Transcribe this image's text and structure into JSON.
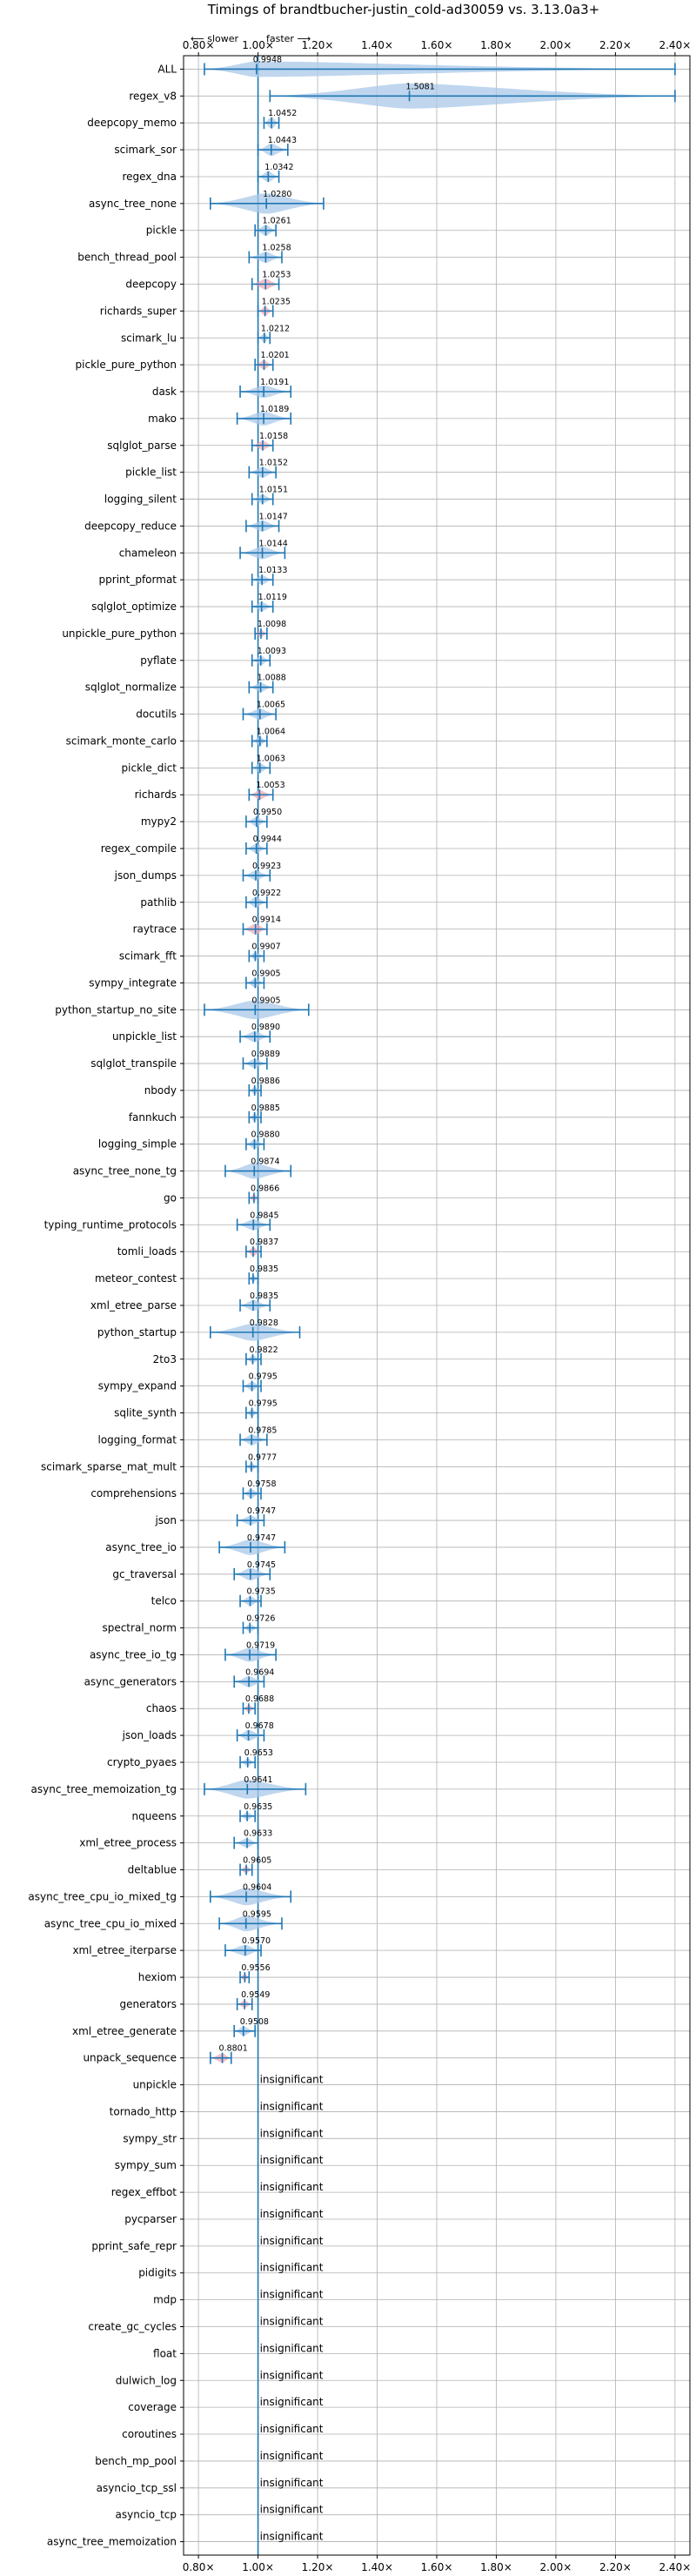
{
  "chart_data": {
    "type": "violin",
    "title": "Timings of brandtbucher-justin_cold-ad30059 vs. 3.13.0a3+",
    "slower_label": "⟵ slower",
    "faster_label": "faster ⟶",
    "xlim": [
      0.75,
      2.45
    ],
    "x_ticks": [
      "0.80×",
      "1.00×",
      "1.20×",
      "1.40×",
      "1.60×",
      "1.80×",
      "2.00×",
      "2.20×",
      "2.40×"
    ],
    "x_tick_values": [
      0.8,
      1.0,
      1.2,
      1.4,
      1.6,
      1.8,
      2.0,
      2.2,
      2.4
    ],
    "grid": true,
    "colors": {
      "violin": "#a9c8e8",
      "violin_significant": "#f4a9b4",
      "line": "#1f77b4",
      "grid": "#b0b0b0"
    },
    "insignificant_label": "insignificant",
    "benchmarks": [
      {
        "name": "ALL",
        "value": 0.9948,
        "label": "0.9948",
        "min": 0.82,
        "max": 2.4,
        "width": 1.0,
        "color": "blue"
      },
      {
        "name": "regex_v8",
        "value": 1.5081,
        "label": "1.5081",
        "min": 1.04,
        "max": 2.4,
        "width": 1.6,
        "color": "blue"
      },
      {
        "name": "deepcopy_memo",
        "value": 1.0452,
        "label": "1.0452",
        "min": 1.02,
        "max": 1.07,
        "width": 0.8,
        "color": "blue"
      },
      {
        "name": "scimark_sor",
        "value": 1.0443,
        "label": "1.0443",
        "min": 1.0,
        "max": 1.1,
        "width": 0.8,
        "color": "blue"
      },
      {
        "name": "regex_dna",
        "value": 1.0342,
        "label": "1.0342",
        "min": 1.0,
        "max": 1.07,
        "width": 0.7,
        "color": "blue"
      },
      {
        "name": "async_tree_none",
        "value": 1.028,
        "label": "1.0280",
        "min": 0.84,
        "max": 1.22,
        "width": 1.3,
        "color": "blue"
      },
      {
        "name": "pickle",
        "value": 1.0261,
        "label": "1.0261",
        "min": 0.99,
        "max": 1.06,
        "width": 0.7,
        "color": "blue"
      },
      {
        "name": "bench_thread_pool",
        "value": 1.0258,
        "label": "1.0258",
        "min": 0.97,
        "max": 1.08,
        "width": 0.7,
        "color": "blue"
      },
      {
        "name": "deepcopy",
        "value": 1.0253,
        "label": "1.0253",
        "min": 0.98,
        "max": 1.07,
        "width": 0.7,
        "color": "pink"
      },
      {
        "name": "richards_super",
        "value": 1.0235,
        "label": "1.0235",
        "min": 1.0,
        "max": 1.05,
        "width": 0.6,
        "color": "pink"
      },
      {
        "name": "scimark_lu",
        "value": 1.0212,
        "label": "1.0212",
        "min": 1.0,
        "max": 1.04,
        "width": 0.6,
        "color": "blue"
      },
      {
        "name": "pickle_pure_python",
        "value": 1.0201,
        "label": "1.0201",
        "min": 0.99,
        "max": 1.05,
        "width": 0.6,
        "color": "pink"
      },
      {
        "name": "dask",
        "value": 1.0191,
        "label": "1.0191",
        "min": 0.94,
        "max": 1.11,
        "width": 0.8,
        "color": "blue"
      },
      {
        "name": "mako",
        "value": 1.0189,
        "label": "1.0189",
        "min": 0.93,
        "max": 1.11,
        "width": 0.9,
        "color": "blue"
      },
      {
        "name": "sqlglot_parse",
        "value": 1.0158,
        "label": "1.0158",
        "min": 0.98,
        "max": 1.05,
        "width": 0.6,
        "color": "pink"
      },
      {
        "name": "pickle_list",
        "value": 1.0152,
        "label": "1.0152",
        "min": 0.97,
        "max": 1.06,
        "width": 0.7,
        "color": "blue"
      },
      {
        "name": "logging_silent",
        "value": 1.0151,
        "label": "1.0151",
        "min": 0.98,
        "max": 1.05,
        "width": 0.6,
        "color": "blue"
      },
      {
        "name": "deepcopy_reduce",
        "value": 1.0147,
        "label": "1.0147",
        "min": 0.96,
        "max": 1.07,
        "width": 0.7,
        "color": "blue"
      },
      {
        "name": "chameleon",
        "value": 1.0144,
        "label": "1.0144",
        "min": 0.94,
        "max": 1.09,
        "width": 0.8,
        "color": "blue"
      },
      {
        "name": "pprint_pformat",
        "value": 1.0133,
        "label": "1.0133",
        "min": 0.98,
        "max": 1.05,
        "width": 0.6,
        "color": "blue"
      },
      {
        "name": "sqlglot_optimize",
        "value": 1.0119,
        "label": "1.0119",
        "min": 0.98,
        "max": 1.05,
        "width": 0.6,
        "color": "blue"
      },
      {
        "name": "unpickle_pure_python",
        "value": 1.0098,
        "label": "1.0098",
        "min": 0.99,
        "max": 1.03,
        "width": 0.5,
        "color": "pink"
      },
      {
        "name": "pyflate",
        "value": 1.0093,
        "label": "1.0093",
        "min": 0.98,
        "max": 1.04,
        "width": 0.6,
        "color": "blue"
      },
      {
        "name": "sqlglot_normalize",
        "value": 1.0088,
        "label": "1.0088",
        "min": 0.97,
        "max": 1.05,
        "width": 0.6,
        "color": "blue"
      },
      {
        "name": "docutils",
        "value": 1.0065,
        "label": "1.0065",
        "min": 0.95,
        "max": 1.06,
        "width": 0.7,
        "color": "blue"
      },
      {
        "name": "scimark_monte_carlo",
        "value": 1.0064,
        "label": "1.0064",
        "min": 0.98,
        "max": 1.03,
        "width": 0.6,
        "color": "blue"
      },
      {
        "name": "pickle_dict",
        "value": 1.0063,
        "label": "1.0063",
        "min": 0.98,
        "max": 1.04,
        "width": 0.6,
        "color": "blue"
      },
      {
        "name": "richards",
        "value": 1.0053,
        "label": "1.0053",
        "min": 0.97,
        "max": 1.05,
        "width": 0.6,
        "color": "pink"
      },
      {
        "name": "mypy2",
        "value": 0.995,
        "label": "0.9950",
        "min": 0.96,
        "max": 1.03,
        "width": 0.6,
        "color": "blue"
      },
      {
        "name": "regex_compile",
        "value": 0.9944,
        "label": "0.9944",
        "min": 0.96,
        "max": 1.03,
        "width": 0.6,
        "color": "blue"
      },
      {
        "name": "json_dumps",
        "value": 0.9923,
        "label": "0.9923",
        "min": 0.95,
        "max": 1.04,
        "width": 0.6,
        "color": "blue"
      },
      {
        "name": "pathlib",
        "value": 0.9922,
        "label": "0.9922",
        "min": 0.96,
        "max": 1.03,
        "width": 0.7,
        "color": "blue"
      },
      {
        "name": "raytrace",
        "value": 0.9914,
        "label": "0.9914",
        "min": 0.95,
        "max": 1.03,
        "width": 0.7,
        "color": "pink"
      },
      {
        "name": "scimark_fft",
        "value": 0.9907,
        "label": "0.9907",
        "min": 0.97,
        "max": 1.02,
        "width": 0.5,
        "color": "blue"
      },
      {
        "name": "sympy_integrate",
        "value": 0.9905,
        "label": "0.9905",
        "min": 0.96,
        "max": 1.02,
        "width": 0.6,
        "color": "blue"
      },
      {
        "name": "python_startup_no_site",
        "value": 0.9905,
        "label": "0.9905",
        "min": 0.82,
        "max": 1.17,
        "width": 1.2,
        "color": "blue"
      },
      {
        "name": "unpickle_list",
        "value": 0.989,
        "label": "0.9890",
        "min": 0.94,
        "max": 1.04,
        "width": 0.7,
        "color": "blue"
      },
      {
        "name": "sqlglot_transpile",
        "value": 0.9889,
        "label": "0.9889",
        "min": 0.95,
        "max": 1.03,
        "width": 0.6,
        "color": "blue"
      },
      {
        "name": "nbody",
        "value": 0.9886,
        "label": "0.9886",
        "min": 0.97,
        "max": 1.01,
        "width": 0.5,
        "color": "blue"
      },
      {
        "name": "fannkuch",
        "value": 0.9885,
        "label": "0.9885",
        "min": 0.97,
        "max": 1.01,
        "width": 0.5,
        "color": "blue"
      },
      {
        "name": "logging_simple",
        "value": 0.988,
        "label": "0.9880",
        "min": 0.96,
        "max": 1.02,
        "width": 0.6,
        "color": "blue"
      },
      {
        "name": "async_tree_none_tg",
        "value": 0.9874,
        "label": "0.9874",
        "min": 0.89,
        "max": 1.11,
        "width": 1.0,
        "color": "blue"
      },
      {
        "name": "go",
        "value": 0.9866,
        "label": "0.9866",
        "min": 0.97,
        "max": 1.0,
        "width": 0.5,
        "color": "pink"
      },
      {
        "name": "typing_runtime_protocols",
        "value": 0.9845,
        "label": "0.9845",
        "min": 0.93,
        "max": 1.04,
        "width": 0.7,
        "color": "blue"
      },
      {
        "name": "tomli_loads",
        "value": 0.9837,
        "label": "0.9837",
        "min": 0.96,
        "max": 1.01,
        "width": 0.6,
        "color": "pink"
      },
      {
        "name": "meteor_contest",
        "value": 0.9835,
        "label": "0.9835",
        "min": 0.97,
        "max": 1.0,
        "width": 0.5,
        "color": "blue"
      },
      {
        "name": "xml_etree_parse",
        "value": 0.9835,
        "label": "0.9835",
        "min": 0.94,
        "max": 1.04,
        "width": 0.7,
        "color": "blue"
      },
      {
        "name": "python_startup",
        "value": 0.9828,
        "label": "0.9828",
        "min": 0.84,
        "max": 1.14,
        "width": 1.1,
        "color": "blue"
      },
      {
        "name": "2to3",
        "value": 0.9822,
        "label": "0.9822",
        "min": 0.96,
        "max": 1.01,
        "width": 0.5,
        "color": "blue"
      },
      {
        "name": "sympy_expand",
        "value": 0.9795,
        "label": "0.9795",
        "min": 0.95,
        "max": 1.01,
        "width": 0.6,
        "color": "blue"
      },
      {
        "name": "sqlite_synth",
        "value": 0.9795,
        "label": "0.9795",
        "min": 0.96,
        "max": 1.0,
        "width": 0.5,
        "color": "blue"
      },
      {
        "name": "logging_format",
        "value": 0.9785,
        "label": "0.9785",
        "min": 0.94,
        "max": 1.03,
        "width": 0.7,
        "color": "blue"
      },
      {
        "name": "scimark_sparse_mat_mult",
        "value": 0.9777,
        "label": "0.9777",
        "min": 0.96,
        "max": 1.0,
        "width": 0.5,
        "color": "blue"
      },
      {
        "name": "comprehensions",
        "value": 0.9758,
        "label": "0.9758",
        "min": 0.95,
        "max": 1.01,
        "width": 0.6,
        "color": "blue"
      },
      {
        "name": "json",
        "value": 0.9747,
        "label": "0.9747",
        "min": 0.93,
        "max": 1.02,
        "width": 0.6,
        "color": "blue"
      },
      {
        "name": "async_tree_io",
        "value": 0.9747,
        "label": "0.9747",
        "min": 0.87,
        "max": 1.09,
        "width": 1.0,
        "color": "blue"
      },
      {
        "name": "gc_traversal",
        "value": 0.9745,
        "label": "0.9745",
        "min": 0.92,
        "max": 1.04,
        "width": 0.8,
        "color": "blue"
      },
      {
        "name": "telco",
        "value": 0.9735,
        "label": "0.9735",
        "min": 0.94,
        "max": 1.01,
        "width": 0.6,
        "color": "blue"
      },
      {
        "name": "spectral_norm",
        "value": 0.9726,
        "label": "0.9726",
        "min": 0.95,
        "max": 1.0,
        "width": 0.5,
        "color": "blue"
      },
      {
        "name": "async_tree_io_tg",
        "value": 0.9719,
        "label": "0.9719",
        "min": 0.89,
        "max": 1.06,
        "width": 0.9,
        "color": "blue"
      },
      {
        "name": "async_generators",
        "value": 0.9694,
        "label": "0.9694",
        "min": 0.92,
        "max": 1.02,
        "width": 0.7,
        "color": "blue"
      },
      {
        "name": "chaos",
        "value": 0.9688,
        "label": "0.9688",
        "min": 0.95,
        "max": 0.99,
        "width": 0.5,
        "color": "pink"
      },
      {
        "name": "json_loads",
        "value": 0.9678,
        "label": "0.9678",
        "min": 0.93,
        "max": 1.02,
        "width": 0.7,
        "color": "blue"
      },
      {
        "name": "crypto_pyaes",
        "value": 0.9653,
        "label": "0.9653",
        "min": 0.94,
        "max": 0.99,
        "width": 0.5,
        "color": "blue"
      },
      {
        "name": "async_tree_memoization_tg",
        "value": 0.9641,
        "label": "0.9641",
        "min": 0.82,
        "max": 1.16,
        "width": 1.2,
        "color": "blue"
      },
      {
        "name": "nqueens",
        "value": 0.9635,
        "label": "0.9635",
        "min": 0.94,
        "max": 0.99,
        "width": 0.5,
        "color": "blue"
      },
      {
        "name": "xml_etree_process",
        "value": 0.9633,
        "label": "0.9633",
        "min": 0.92,
        "max": 1.0,
        "width": 0.6,
        "color": "blue"
      },
      {
        "name": "deltablue",
        "value": 0.9605,
        "label": "0.9605",
        "min": 0.94,
        "max": 0.98,
        "width": 0.5,
        "color": "pink"
      },
      {
        "name": "async_tree_cpu_io_mixed_tg",
        "value": 0.9604,
        "label": "0.9604",
        "min": 0.84,
        "max": 1.11,
        "width": 1.1,
        "color": "blue"
      },
      {
        "name": "async_tree_cpu_io_mixed",
        "value": 0.9595,
        "label": "0.9595",
        "min": 0.87,
        "max": 1.08,
        "width": 1.0,
        "color": "blue"
      },
      {
        "name": "xml_etree_iterparse",
        "value": 0.957,
        "label": "0.9570",
        "min": 0.89,
        "max": 1.01,
        "width": 0.7,
        "color": "blue"
      },
      {
        "name": "hexiom",
        "value": 0.9556,
        "label": "0.9556",
        "min": 0.94,
        "max": 0.97,
        "width": 0.5,
        "color": "pink"
      },
      {
        "name": "generators",
        "value": 0.9549,
        "label": "0.9549",
        "min": 0.93,
        "max": 0.98,
        "width": 0.5,
        "color": "pink"
      },
      {
        "name": "xml_etree_generate",
        "value": 0.9508,
        "label": "0.9508",
        "min": 0.92,
        "max": 0.99,
        "width": 0.6,
        "color": "blue"
      },
      {
        "name": "unpack_sequence",
        "value": 0.8801,
        "label": "0.8801",
        "min": 0.84,
        "max": 0.91,
        "width": 0.6,
        "color": "pink"
      },
      {
        "name": "unpickle",
        "insignificant": true
      },
      {
        "name": "tornado_http",
        "insignificant": true
      },
      {
        "name": "sympy_str",
        "insignificant": true
      },
      {
        "name": "sympy_sum",
        "insignificant": true
      },
      {
        "name": "regex_effbot",
        "insignificant": true
      },
      {
        "name": "pycparser",
        "insignificant": true
      },
      {
        "name": "pprint_safe_repr",
        "insignificant": true
      },
      {
        "name": "pidigits",
        "insignificant": true
      },
      {
        "name": "mdp",
        "insignificant": true
      },
      {
        "name": "create_gc_cycles",
        "insignificant": true
      },
      {
        "name": "float",
        "insignificant": true
      },
      {
        "name": "dulwich_log",
        "insignificant": true
      },
      {
        "name": "coverage",
        "insignificant": true
      },
      {
        "name": "coroutines",
        "insignificant": true
      },
      {
        "name": "bench_mp_pool",
        "insignificant": true
      },
      {
        "name": "asyncio_tcp_ssl",
        "insignificant": true
      },
      {
        "name": "asyncio_tcp",
        "insignificant": true
      },
      {
        "name": "async_tree_memoization",
        "insignificant": true
      }
    ]
  }
}
